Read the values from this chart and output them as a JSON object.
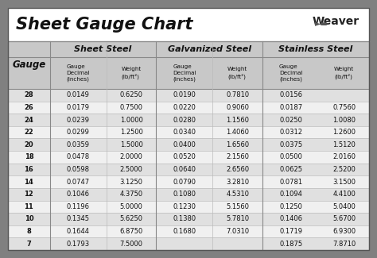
{
  "title": "Sheet Gauge Chart",
  "bg_outer": "#808080",
  "bg_white": "#ffffff",
  "bg_header_gray": "#c8c8c8",
  "bg_row_light": "#e0e0e0",
  "bg_row_white": "#f0f0f0",
  "col_section_headers": [
    "Sheet Steel",
    "Galvanized Steel",
    "Stainless Steel"
  ],
  "gauges": [
    "28",
    "26",
    "24",
    "22",
    "20",
    "18",
    "16",
    "14",
    "12",
    "11",
    "10",
    "8",
    "7"
  ],
  "sheet_steel": [
    [
      "0.0149",
      "0.6250"
    ],
    [
      "0.0179",
      "0.7500"
    ],
    [
      "0.0239",
      "1.0000"
    ],
    [
      "0.0299",
      "1.2500"
    ],
    [
      "0.0359",
      "1.5000"
    ],
    [
      "0.0478",
      "2.0000"
    ],
    [
      "0.0598",
      "2.5000"
    ],
    [
      "0.0747",
      "3.1250"
    ],
    [
      "0.1046",
      "4.3750"
    ],
    [
      "0.1196",
      "5.0000"
    ],
    [
      "0.1345",
      "5.6250"
    ],
    [
      "0.1644",
      "6.8750"
    ],
    [
      "0.1793",
      "7.5000"
    ]
  ],
  "galvanized_steel": [
    [
      "0.0190",
      "0.7810"
    ],
    [
      "0.0220",
      "0.9060"
    ],
    [
      "0.0280",
      "1.1560"
    ],
    [
      "0.0340",
      "1.4060"
    ],
    [
      "0.0400",
      "1.6560"
    ],
    [
      "0.0520",
      "2.1560"
    ],
    [
      "0.0640",
      "2.6560"
    ],
    [
      "0.0790",
      "3.2810"
    ],
    [
      "0.1080",
      "4.5310"
    ],
    [
      "0.1230",
      "5.1560"
    ],
    [
      "0.1380",
      "5.7810"
    ],
    [
      "0.1680",
      "7.0310"
    ],
    [
      "",
      ""
    ]
  ],
  "stainless_steel": [
    [
      "0.0156",
      ""
    ],
    [
      "0.0187",
      "0.7560"
    ],
    [
      "0.0250",
      "1.0080"
    ],
    [
      "0.0312",
      "1.2600"
    ],
    [
      "0.0375",
      "1.5120"
    ],
    [
      "0.0500",
      "2.0160"
    ],
    [
      "0.0625",
      "2.5200"
    ],
    [
      "0.0781",
      "3.1500"
    ],
    [
      "0.1094",
      "4.4100"
    ],
    [
      "0.1250",
      "5.0400"
    ],
    [
      "0.1406",
      "5.6700"
    ],
    [
      "0.1719",
      "6.9300"
    ],
    [
      "0.1875",
      "7.8710"
    ]
  ]
}
